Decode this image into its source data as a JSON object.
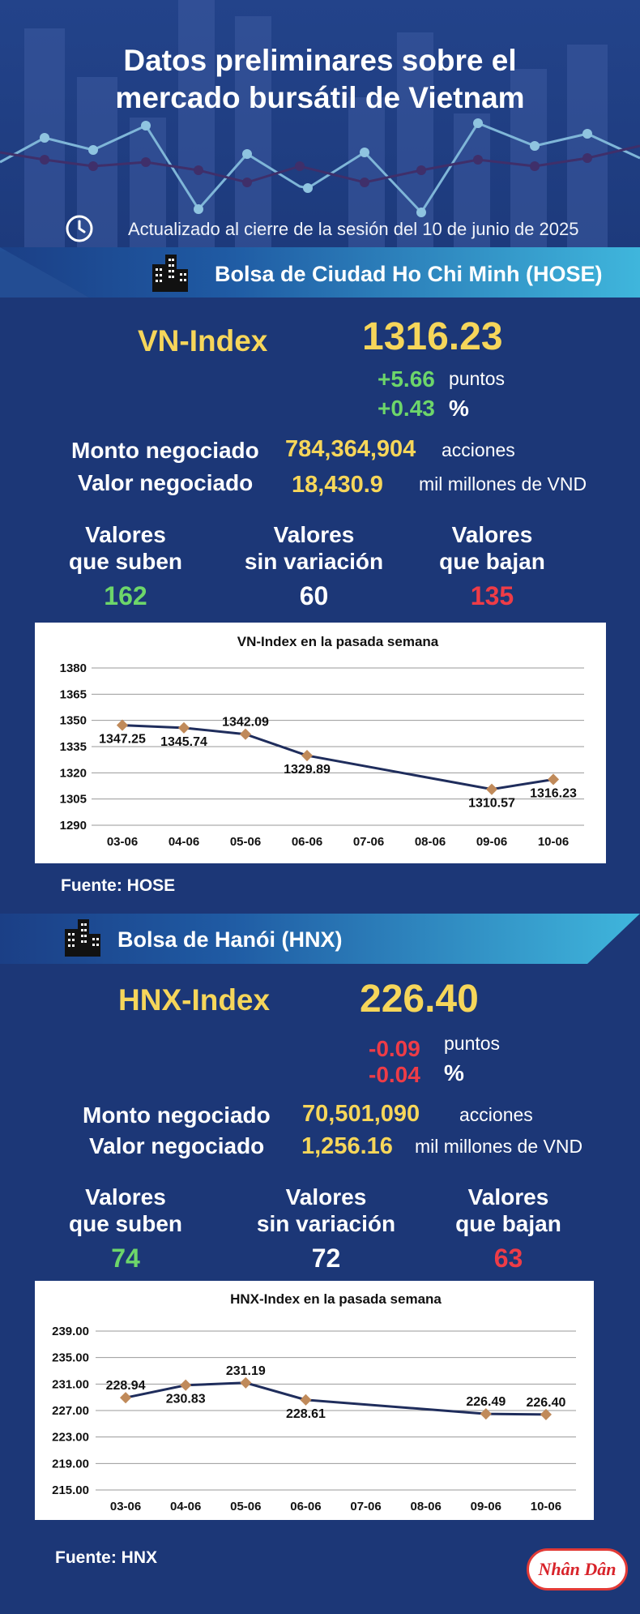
{
  "title_line1": "Datos preliminares sobre el",
  "title_line2": "mercado bursátil de Vietnam",
  "updated": "Actualizado al cierre de la sesión del 10 de junio de 2025",
  "hose": {
    "exchange": "Bolsa de Ciudad Ho Chi Minh (HOSE)",
    "index_name": "VN-Index",
    "index_value": "1316.23",
    "change_points": "+5.66",
    "points_label": "puntos",
    "change_pct": "+0.43",
    "pct_label": "%",
    "volume_label": "Monto negociado",
    "volume_value": "784,364,904",
    "volume_unit": "acciones",
    "value_label": "Valor negociado",
    "value_value": "18,430.9",
    "value_unit": "mil millones de VND",
    "up_label_1": "Valores",
    "up_label_2": "que suben",
    "up_value": "162",
    "flat_label_1": "Valores",
    "flat_label_2": "sin variación",
    "flat_value": "60",
    "down_label_1": "Valores",
    "down_label_2": "que bajan",
    "down_value": "135",
    "source": "Fuente: HOSE"
  },
  "hnx": {
    "exchange": "Bolsa de Hanói (HNX)",
    "index_name": "HNX-Index",
    "index_value": "226.40",
    "change_points": "-0.09",
    "points_label": "puntos",
    "change_pct": "-0.04",
    "pct_label": "%",
    "volume_label": "Monto negociado",
    "volume_value": "70,501,090",
    "volume_unit": "acciones",
    "value_label": "Valor negociado",
    "value_value": "1,256.16",
    "value_unit": "mil millones de VND",
    "up_label_1": "Valores",
    "up_label_2": "que suben",
    "up_value": "74",
    "flat_label_1": "Valores",
    "flat_label_2": "sin variación",
    "flat_value": "72",
    "down_label_1": "Valores",
    "down_label_2": "que bajan",
    "down_value": "63",
    "source": "Fuente:  HNX"
  },
  "logo_text": "Nhân Dân",
  "colors": {
    "background": "#1c3777",
    "accent_yellow": "#f6d65a",
    "up_green": "#6dd66a",
    "down_red": "#ee3c47",
    "line": "#1f2d5c",
    "marker": "#c08a5a"
  },
  "chart_data": [
    {
      "type": "line",
      "title": "VN-Index en la pasada semana",
      "categories": [
        "03-06",
        "04-06",
        "05-06",
        "06-06",
        "07-06",
        "08-06",
        "09-06",
        "10-06"
      ],
      "x_plotted": [
        "03-06",
        "04-06",
        "05-06",
        "06-06",
        "09-06",
        "10-06"
      ],
      "values": [
        1347.25,
        1345.74,
        1342.09,
        1329.89,
        1310.57,
        1316.23
      ],
      "labels": [
        "1347.25",
        "1345.74",
        "1342.09",
        "1329.89",
        "1310.57",
        "1316.23"
      ],
      "yticks": [
        "1290",
        "1305",
        "1320",
        "1335",
        "1350",
        "1365",
        "1380"
      ],
      "ylim": [
        1290,
        1380
      ],
      "grid": true
    },
    {
      "type": "line",
      "title": "HNX-Index en la pasada semana",
      "categories": [
        "03-06",
        "04-06",
        "05-06",
        "06-06",
        "07-06",
        "08-06",
        "09-06",
        "10-06"
      ],
      "x_plotted": [
        "03-06",
        "04-06",
        "05-06",
        "06-06",
        "09-06",
        "10-06"
      ],
      "values": [
        228.94,
        230.83,
        231.19,
        228.61,
        226.49,
        226.4
      ],
      "labels": [
        "228.94",
        "230.83",
        "231.19",
        "228.61",
        "226.49",
        "226.40"
      ],
      "yticks": [
        "215.00",
        "219.00",
        "223.00",
        "227.00",
        "231.00",
        "235.00",
        "239.00"
      ],
      "ylim": [
        215,
        239
      ],
      "grid": true
    }
  ]
}
